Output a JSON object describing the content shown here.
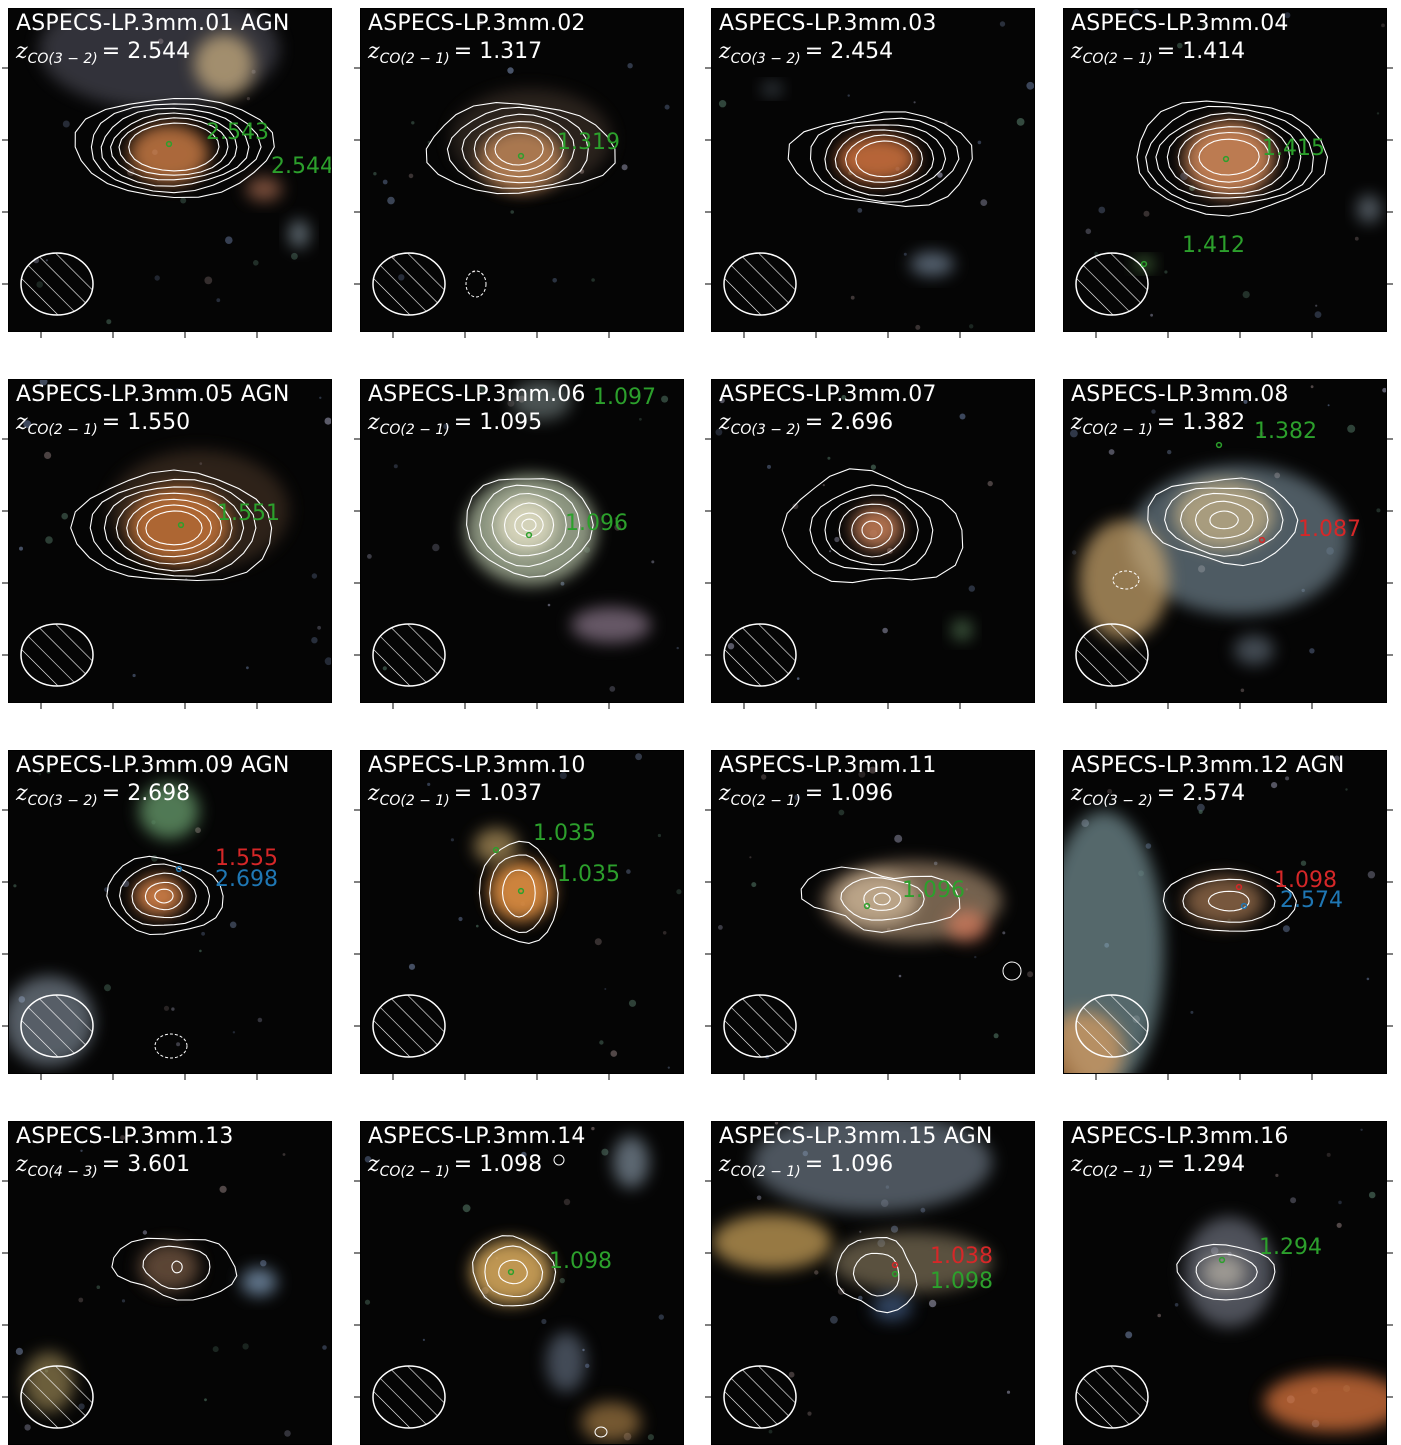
{
  "colors": {
    "green": "#2ca02c",
    "red": "#d62728",
    "blue": "#1f77b4",
    "contour": "#ffffff"
  },
  "panels": [
    {
      "title": "ASPECS-LP.3mm.01 AGN",
      "z_var": "z",
      "z_sub": "CO(3 − 2)",
      "z_value": "= 2.544",
      "labels": [
        {
          "text": "2.543",
          "color": "green"
        },
        {
          "text": "2.544",
          "color": "green"
        }
      ]
    },
    {
      "title": "ASPECS-LP.3mm.02",
      "z_var": "z",
      "z_sub": "CO(2 − 1)",
      "z_value": "= 1.317",
      "labels": [
        {
          "text": "1.319",
          "color": "green"
        }
      ]
    },
    {
      "title": "ASPECS-LP.3mm.03",
      "z_var": "z",
      "z_sub": "CO(3 − 2)",
      "z_value": "= 2.454",
      "labels": []
    },
    {
      "title": "ASPECS-LP.3mm.04",
      "z_var": "z",
      "z_sub": "CO(2 − 1)",
      "z_value": "= 1.414",
      "labels": [
        {
          "text": "1.415",
          "color": "green"
        },
        {
          "text": "1.412",
          "color": "green"
        }
      ]
    },
    {
      "title": "ASPECS-LP.3mm.05 AGN",
      "z_var": "z",
      "z_sub": "CO(2 − 1)",
      "z_value": "= 1.550",
      "labels": [
        {
          "text": "1.551",
          "color": "green"
        }
      ]
    },
    {
      "title": "ASPECS-LP.3mm.06",
      "z_var": "z",
      "z_sub": "CO(2 − 1)",
      "z_value": "= 1.095",
      "labels": [
        {
          "text": "1.097",
          "color": "green"
        },
        {
          "text": "1.096",
          "color": "green"
        }
      ]
    },
    {
      "title": "ASPECS-LP.3mm.07",
      "z_var": "z",
      "z_sub": "CO(3 − 2)",
      "z_value": "= 2.696",
      "labels": []
    },
    {
      "title": "ASPECS-LP.3mm.08",
      "z_var": "z",
      "z_sub": "CO(2 − 1)",
      "z_value": "= 1.382",
      "labels": [
        {
          "text": "1.382",
          "color": "green"
        },
        {
          "text": "1.087",
          "color": "red"
        }
      ]
    },
    {
      "title": "ASPECS-LP.3mm.09 AGN",
      "z_var": "z",
      "z_sub": "CO(3 − 2)",
      "z_value": "= 2.698",
      "labels": [
        {
          "text": "1.555",
          "color": "red"
        },
        {
          "text": "2.698",
          "color": "blue"
        }
      ]
    },
    {
      "title": "ASPECS-LP.3mm.10",
      "z_var": "z",
      "z_sub": "CO(2 − 1)",
      "z_value": "= 1.037",
      "labels": [
        {
          "text": "1.035",
          "color": "green"
        },
        {
          "text": "1.035",
          "color": "green"
        }
      ]
    },
    {
      "title": "ASPECS-LP.3mm.11",
      "z_var": "z",
      "z_sub": "CO(2 − 1)",
      "z_value": "= 1.096",
      "labels": [
        {
          "text": "1.096",
          "color": "green"
        }
      ]
    },
    {
      "title": "ASPECS-LP.3mm.12 AGN",
      "z_var": "z",
      "z_sub": "CO(3 − 2)",
      "z_value": "= 2.574",
      "labels": [
        {
          "text": "1.098",
          "color": "red"
        },
        {
          "text": "2.574",
          "color": "blue"
        }
      ]
    },
    {
      "title": "ASPECS-LP.3mm.13",
      "z_var": "z",
      "z_sub": "CO(4 − 3)",
      "z_value": "= 3.601",
      "labels": []
    },
    {
      "title": "ASPECS-LP.3mm.14",
      "z_var": "z",
      "z_sub": "CO(2 − 1)",
      "z_value": "= 1.098",
      "labels": [
        {
          "text": "1.098",
          "color": "green"
        }
      ]
    },
    {
      "title": "ASPECS-LP.3mm.15 AGN",
      "z_var": "z",
      "z_sub": "CO(2 − 1)",
      "z_value": "= 1.096",
      "labels": [
        {
          "text": "1.038",
          "color": "red"
        },
        {
          "text": "1.098",
          "color": "green"
        }
      ]
    },
    {
      "title": "ASPECS-LP.3mm.16",
      "z_var": "z",
      "z_sub": "CO(2 − 1)",
      "z_value": "= 1.294",
      "labels": [
        {
          "text": "1.294",
          "color": "green"
        }
      ]
    }
  ]
}
